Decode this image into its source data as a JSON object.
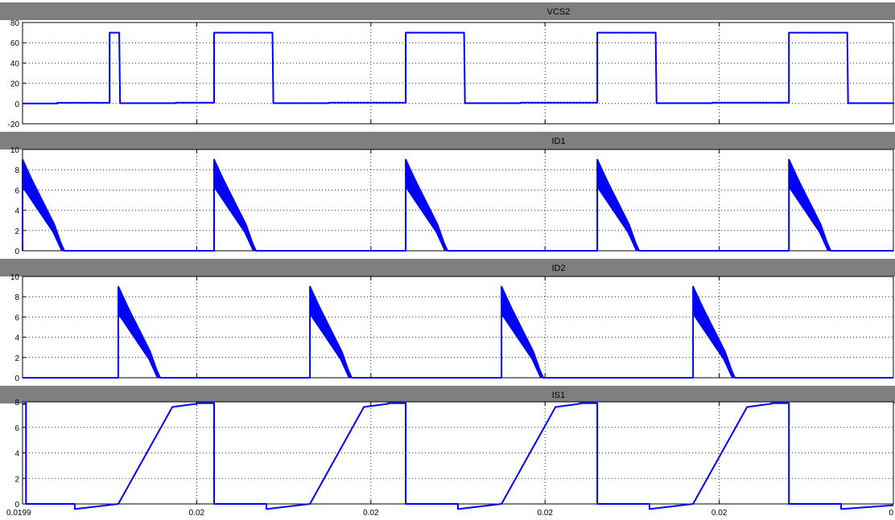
{
  "colors": {
    "background": "#ffffff",
    "title_bar": "#7f7f7f",
    "trace": "#0000ff",
    "grid": "#000000",
    "text": "#000000"
  },
  "chart_data": [
    {
      "type": "line",
      "title": "VCS2",
      "ylim": [
        -20,
        80
      ],
      "yticks": [
        -20,
        0,
        20,
        40,
        60,
        80
      ],
      "ytick_labels": [
        "-20",
        "0",
        "20",
        "40",
        "60",
        "80"
      ],
      "grid": true,
      "series": [
        {
          "x": [
            0,
            0.2,
            0.2,
            0.5,
            0.5,
            0.555,
            0.56,
            0.88,
            0.88,
            1.1,
            1.1,
            1.435,
            1.44,
            1.76,
            1.76,
            2.2,
            2.2,
            2.535,
            2.54,
            2.86,
            2.86,
            3.3,
            3.3,
            3.635,
            3.64,
            3.96,
            3.96,
            4.4,
            4.4,
            4.735,
            4.74,
            5.06,
            5.06,
            5.0
          ],
          "y": [
            0,
            0,
            0.7,
            0.7,
            70,
            70,
            0.3,
            0.3,
            0.8,
            0.8,
            70,
            70,
            0.3,
            0.3,
            0.8,
            0.8,
            70,
            70,
            0.3,
            0.3,
            0.8,
            0.8,
            70,
            70,
            0.3,
            0.3,
            0.8,
            0.8,
            70,
            70,
            0.3,
            0.3,
            0.8,
            0.8
          ]
        }
      ]
    },
    {
      "type": "line",
      "title": "ID1",
      "ylim": [
        0,
        10
      ],
      "yticks": [
        0,
        2,
        4,
        6,
        8,
        10
      ],
      "ytick_labels": [
        "0",
        "2",
        "4",
        "6",
        "8",
        "10"
      ],
      "grid": true,
      "series": [
        {
          "x": [
            0,
            0,
            0.24,
            0.24,
            1.1,
            1.1,
            1.34,
            1.34,
            2.2,
            2.2,
            2.44,
            2.44,
            3.3,
            3.3,
            3.54,
            3.54,
            4.4,
            4.4,
            4.64,
            4.64,
            5.0
          ],
          "y": [
            0,
            9,
            0,
            0,
            0,
            9,
            0,
            0,
            0,
            9,
            0,
            0,
            0,
            9,
            0,
            0,
            0,
            9,
            0,
            0,
            0
          ]
        }
      ]
    },
    {
      "type": "line",
      "title": "ID2",
      "ylim": [
        0,
        10
      ],
      "yticks": [
        0,
        2,
        4,
        6,
        8,
        10
      ],
      "ytick_labels": [
        "0",
        "2",
        "4",
        "6",
        "8",
        "10"
      ],
      "grid": true,
      "series": [
        {
          "x": [
            0,
            0.55,
            0.55,
            0.79,
            0.79,
            1.65,
            1.65,
            1.89,
            1.89,
            2.75,
            2.75,
            2.99,
            2.99,
            3.85,
            3.85,
            4.09,
            4.09,
            5.0
          ],
          "y": [
            0,
            0,
            9,
            0,
            0,
            0,
            9,
            0,
            0,
            0,
            9,
            0,
            0,
            0,
            9,
            0,
            0,
            0
          ]
        }
      ]
    },
    {
      "type": "line",
      "title": "IS1",
      "ylim": [
        0,
        8
      ],
      "yticks": [
        0,
        2,
        4,
        6,
        8
      ],
      "ytick_labels": [
        "0",
        "2",
        "4",
        "6",
        "8"
      ],
      "xticks": [
        0,
        1.0,
        2.0,
        3.0,
        4.0,
        5.0
      ],
      "xtick_labels": [
        "0.0199",
        "0.02",
        "0.02",
        "0.02",
        "0.02",
        "0"
      ],
      "grid": true,
      "series": [
        {
          "x": [
            0,
            0.02,
            0.02,
            0.3,
            0.3,
            0.3,
            0.55,
            0.86,
            1.0,
            1.0,
            1.1,
            1.1,
            1.4,
            1.4,
            1.65,
            1.96,
            2.1,
            2.1,
            2.2,
            2.2,
            2.5,
            2.5,
            2.75,
            3.06,
            3.2,
            3.2,
            3.3,
            3.3,
            3.6,
            3.6,
            3.85,
            4.16,
            4.3,
            4.3,
            4.4,
            4.4,
            4.7,
            4.7,
            5.0
          ],
          "y": [
            7.8,
            7.9,
            0,
            0,
            -0.4,
            -0.4,
            0,
            7.6,
            7.85,
            7.9,
            7.9,
            0,
            0,
            -0.4,
            0,
            7.6,
            7.85,
            7.9,
            7.9,
            0,
            0,
            -0.4,
            0,
            7.6,
            7.85,
            7.9,
            7.9,
            0,
            0,
            -0.4,
            0,
            7.6,
            7.85,
            7.9,
            7.9,
            0,
            0,
            -0.4,
            -0.1
          ]
        }
      ]
    }
  ]
}
